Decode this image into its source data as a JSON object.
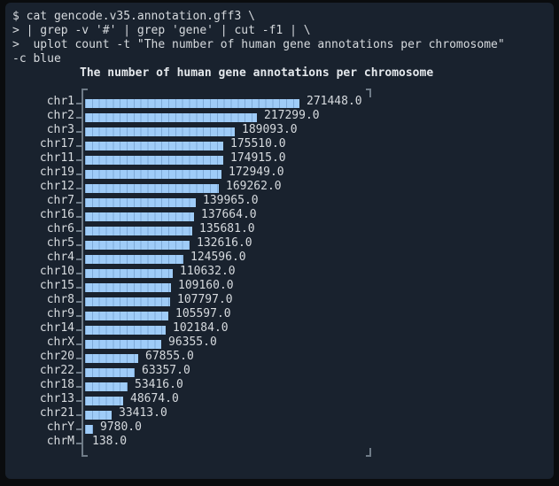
{
  "terminal": {
    "command_lines": [
      "$ cat gencode.v35.annotation.gff3 \\",
      "> | grep -v '#' | grep 'gene' | cut -f1 | \\",
      ">  uplot count -t \"The number of human gene annotations per chromosome\"",
      "-c blue"
    ]
  },
  "chart_data": {
    "type": "bar",
    "orientation": "horizontal",
    "title": "The number of human gene annotations per chromosome",
    "xlabel": "",
    "ylabel": "",
    "xlim": [
      0,
      271448
    ],
    "grid": false,
    "legend_position": "none",
    "bar_color_name": "blue",
    "categories": [
      "chr1",
      "chr2",
      "chr3",
      "chr17",
      "chr11",
      "chr19",
      "chr12",
      "chr7",
      "chr16",
      "chr6",
      "chr5",
      "chr4",
      "chr10",
      "chr15",
      "chr8",
      "chr9",
      "chr14",
      "chrX",
      "chr20",
      "chr22",
      "chr18",
      "chr13",
      "chr21",
      "chrY",
      "chrM"
    ],
    "values": [
      271448,
      217299,
      189093,
      175510,
      174915,
      172949,
      169262,
      139965,
      137664,
      135681,
      132616,
      124596,
      110632,
      109160,
      107797,
      105597,
      102184,
      96355,
      67855,
      63357,
      53416,
      48674,
      33413,
      9780,
      138
    ],
    "value_labels": [
      "271448.0",
      "217299.0",
      "189093.0",
      "175510.0",
      "174915.0",
      "172949.0",
      "169262.0",
      "139965.0",
      "137664.0",
      "135681.0",
      "132616.0",
      "124596.0",
      "110632.0",
      "109160.0",
      "107797.0",
      "105597.0",
      "102184.0",
      "96355.0",
      "67855.0",
      "63357.0",
      "53416.0",
      "48674.0",
      "33413.0",
      "9780.0",
      "138.0"
    ]
  },
  "colors": {
    "outer_border": "#0a0c0e",
    "terminal_background": "#19222e",
    "text": "#d6dade",
    "title_text": "#e4e8ec",
    "bar_fill": "#9fccf8",
    "bar_seam": "#86b6e8",
    "axis_frame": "#6f7b87"
  }
}
